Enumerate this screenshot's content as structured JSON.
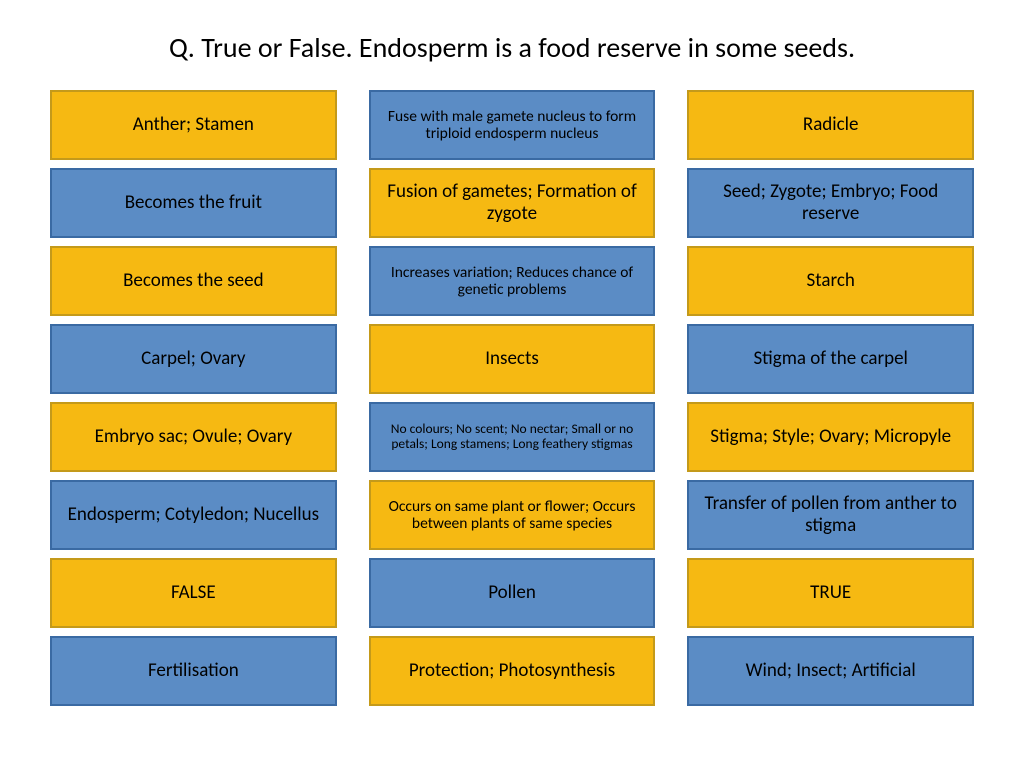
{
  "title": "Q. True or False. Endosperm is a food reserve in some seeds.",
  "colors": {
    "yellow_fill": "#f6b912",
    "yellow_border": "#c49a1a",
    "blue_fill": "#5b8cc5",
    "blue_border": "#3a6aa3"
  },
  "columns": [
    [
      {
        "text": "Anther; Stamen",
        "color": "yellow",
        "size": "normal"
      },
      {
        "text": "Becomes the fruit",
        "color": "blue",
        "size": "normal"
      },
      {
        "text": "Becomes the seed",
        "color": "yellow",
        "size": "normal"
      },
      {
        "text": "Carpel; Ovary",
        "color": "blue",
        "size": "normal"
      },
      {
        "text": "Embryo sac; Ovule; Ovary",
        "color": "yellow",
        "size": "normal"
      },
      {
        "text": "Endosperm; Cotyledon; Nucellus",
        "color": "blue",
        "size": "normal"
      },
      {
        "text": "FALSE",
        "color": "yellow",
        "size": "normal"
      },
      {
        "text": "Fertilisation",
        "color": "blue",
        "size": "normal"
      }
    ],
    [
      {
        "text": "Fuse with male gamete nucleus to form triploid endosperm nucleus",
        "color": "blue",
        "size": "small"
      },
      {
        "text": "Fusion of gametes; Formation of zygote",
        "color": "yellow",
        "size": "normal"
      },
      {
        "text": "Increases variation; Reduces chance of genetic problems",
        "color": "blue",
        "size": "small"
      },
      {
        "text": "Insects",
        "color": "yellow",
        "size": "normal"
      },
      {
        "text": "No colours; No scent; No nectar; Small or no petals; Long stamens; Long feathery stigmas",
        "color": "blue",
        "size": "tiny"
      },
      {
        "text": "Occurs on same plant or flower; Occurs between plants of same species",
        "color": "yellow",
        "size": "small"
      },
      {
        "text": "Pollen",
        "color": "blue",
        "size": "normal"
      },
      {
        "text": "Protection; Photosynthesis",
        "color": "yellow",
        "size": "normal"
      }
    ],
    [
      {
        "text": "Radicle",
        "color": "yellow",
        "size": "normal"
      },
      {
        "text": "Seed; Zygote; Embryo; Food reserve",
        "color": "blue",
        "size": "normal"
      },
      {
        "text": "Starch",
        "color": "yellow",
        "size": "normal"
      },
      {
        "text": "Stigma of the carpel",
        "color": "blue",
        "size": "normal"
      },
      {
        "text": "Stigma; Style; Ovary; Micropyle",
        "color": "yellow",
        "size": "normal"
      },
      {
        "text": "Transfer of pollen from anther to stigma",
        "color": "blue",
        "size": "normal"
      },
      {
        "text": "TRUE",
        "color": "yellow",
        "size": "normal"
      },
      {
        "text": "Wind; Insect; Artificial",
        "color": "blue",
        "size": "normal"
      }
    ]
  ]
}
